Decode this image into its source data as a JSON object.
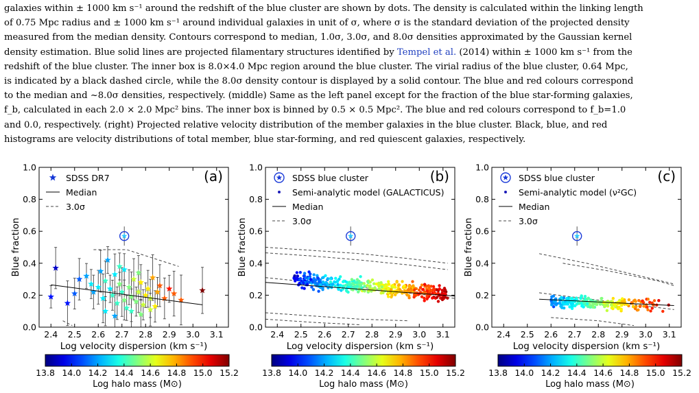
{
  "caption": {
    "lines": [
      "galaxies within ± 1000 km s⁻¹ around the redshift of the blue cluster are shown by dots. The density is calculated within the linking length",
      "of 0.75 Mpc radius and ± 1000 km s⁻¹ around individual galaxies in unit of σ, where σ is the standard deviation of the projected density",
      "measured from the median density. Contours correspond to median, 1.0σ, 3.0σ, and 8.0σ densities approximated by the Gaussian kernel",
      "density estimation. Blue solid lines are projected filamentary structures identified by Tempel et al. (2014) within ± 1000 km s⁻¹ from the",
      "redshift of the blue cluster. The inner box is 8.0×4.0 Mpc region around the blue cluster. The virial radius of the blue cluster, 0.64 Mpc,",
      "is indicated by a black dashed circle, while the 8.0σ density contour is displayed by a solid contour. The blue and red colours correspond",
      "to the median and ~8.0σ densities, respectively. (middle) Same as the left panel except for the fraction of the blue star-forming galaxies,",
      "f_b, calculated in each 2.0 × 2.0 Mpc² bins. The inner box is binned by 0.5 × 0.5 Mpc². The blue and red colours correspond to f_b=1.0",
      "and 0.0, respectively. (right) Projected relative velocity distribution of the member galaxies in the blue cluster. Black, blue, and red",
      "histograms are velocity distributions of total member, blue star-forming, and red quiescent galaxies, respectively."
    ],
    "link_text": "Tempel et al."
  },
  "chart_data": [
    {
      "type": "scatter",
      "panel_label": "(a)",
      "xlabel": "Log velocity dispersion (km s⁻¹)",
      "ylabel": "Blue fraction",
      "xlim": [
        2.35,
        3.15
      ],
      "ylim": [
        0.0,
        1.0
      ],
      "x_ticks": [
        "2.4",
        "2.5",
        "2.6",
        "2.7",
        "2.8",
        "2.9",
        "3.0",
        "3.1"
      ],
      "y_ticks": [
        "0.0",
        "0.2",
        "0.4",
        "0.6",
        "0.8",
        "1.0"
      ],
      "legend": [
        "SDSS DR7",
        "Median",
        "3.0σ"
      ],
      "legend_position": "top-left",
      "colorbar": {
        "label": "Log halo mass (M⊙)",
        "range": [
          13.8,
          15.2
        ],
        "ticks": [
          "13.8",
          "14.0",
          "14.2",
          "14.4",
          "14.6",
          "14.8",
          "15.0",
          "15.2"
        ]
      },
      "blue_cluster": {
        "x": 2.71,
        "y": 0.57,
        "err": 0.06
      },
      "median_line": [
        [
          2.4,
          0.265
        ],
        [
          3.04,
          0.14
        ]
      ],
      "sigma_lines": [
        [
          [
            2.58,
            0.485
          ],
          [
            2.72,
            0.485
          ],
          [
            2.94,
            0.38
          ]
        ],
        [
          [
            2.45,
            0.04
          ],
          [
            2.49,
            0.01
          ]
        ]
      ],
      "points": [
        [
          2.4,
          0.19,
          14.0
        ],
        [
          2.42,
          0.37,
          13.9
        ],
        [
          2.47,
          0.15,
          14.0
        ],
        [
          2.5,
          0.21,
          14.1
        ],
        [
          2.52,
          0.3,
          14.1
        ],
        [
          2.55,
          0.32,
          14.2
        ],
        [
          2.57,
          0.27,
          14.3
        ],
        [
          2.58,
          0.22,
          14.2
        ],
        [
          2.6,
          0.25,
          14.3
        ],
        [
          2.61,
          0.35,
          14.2
        ],
        [
          2.62,
          0.18,
          14.3
        ],
        [
          2.63,
          0.29,
          14.4
        ],
        [
          2.64,
          0.42,
          14.2
        ],
        [
          2.65,
          0.24,
          14.3
        ],
        [
          2.66,
          0.2,
          14.4
        ],
        [
          2.67,
          0.33,
          14.3
        ],
        [
          2.68,
          0.15,
          14.4
        ],
        [
          2.69,
          0.27,
          14.5
        ],
        [
          2.7,
          0.22,
          14.4
        ],
        [
          2.71,
          0.36,
          14.3
        ],
        [
          2.72,
          0.12,
          14.4
        ],
        [
          2.73,
          0.25,
          14.5
        ],
        [
          2.74,
          0.19,
          14.5
        ],
        [
          2.75,
          0.3,
          14.6
        ],
        [
          2.76,
          0.16,
          14.5
        ],
        [
          2.77,
          0.22,
          14.6
        ],
        [
          2.78,
          0.28,
          14.7
        ],
        [
          2.79,
          0.14,
          14.6
        ],
        [
          2.8,
          0.2,
          14.7
        ],
        [
          2.81,
          0.24,
          14.7
        ],
        [
          2.82,
          0.18,
          14.6
        ],
        [
          2.83,
          0.31,
          14.8
        ],
        [
          2.84,
          0.13,
          14.7
        ],
        [
          2.85,
          0.22,
          14.8
        ],
        [
          2.86,
          0.26,
          14.9
        ],
        [
          2.88,
          0.18,
          14.9
        ],
        [
          2.9,
          0.24,
          15.0
        ],
        [
          2.92,
          0.21,
          14.9
        ],
        [
          2.95,
          0.17,
          14.9
        ],
        [
          3.04,
          0.23,
          15.2
        ],
        [
          2.63,
          0.1,
          14.3
        ],
        [
          2.67,
          0.07,
          14.2
        ],
        [
          2.71,
          0.17,
          14.5
        ],
        [
          2.74,
          0.1,
          14.4
        ],
        [
          2.78,
          0.08,
          14.5
        ],
        [
          2.82,
          0.11,
          14.6
        ],
        [
          2.69,
          0.38,
          14.4
        ],
        [
          2.77,
          0.34,
          14.5
        ]
      ]
    },
    {
      "type": "scatter",
      "panel_label": "(b)",
      "xlabel": "Log velocity dispersion (km s⁻¹)",
      "ylabel": "Blue fraction",
      "xlim": [
        2.35,
        3.15
      ],
      "ylim": [
        0.0,
        1.0
      ],
      "x_ticks": [
        "2.4",
        "2.5",
        "2.6",
        "2.7",
        "2.8",
        "2.9",
        "3.0",
        "3.1"
      ],
      "y_ticks": [
        "0.0",
        "0.2",
        "0.4",
        "0.6",
        "0.8",
        "1.0"
      ],
      "legend": [
        "SDSS blue cluster",
        "Semi-analytic model (GALACTICUS)",
        "Median",
        "3.0σ"
      ],
      "legend_position": "top-left",
      "colorbar": {
        "label": "Log halo mass (M⊙)",
        "range": [
          13.8,
          15.2
        ],
        "ticks": [
          "13.8",
          "14.0",
          "14.2",
          "14.4",
          "14.6",
          "14.8",
          "15.0",
          "15.2"
        ]
      },
      "blue_cluster": {
        "x": 2.71,
        "y": 0.57,
        "err": 0.06
      },
      "median_line": [
        [
          2.35,
          0.28
        ],
        [
          3.15,
          0.195
        ]
      ],
      "sigma_lines": [
        [
          [
            2.35,
            0.5
          ],
          [
            2.55,
            0.48
          ],
          [
            2.75,
            0.46
          ],
          [
            2.95,
            0.43
          ],
          [
            3.12,
            0.4
          ]
        ],
        [
          [
            2.35,
            0.465
          ],
          [
            2.55,
            0.445
          ],
          [
            2.75,
            0.42
          ],
          [
            2.95,
            0.39
          ],
          [
            3.12,
            0.36
          ]
        ],
        [
          [
            2.35,
            0.31
          ],
          [
            2.75,
            0.25
          ],
          [
            3.15,
            0.18
          ]
        ],
        [
          [
            2.35,
            0.09
          ],
          [
            2.55,
            0.07
          ],
          [
            2.75,
            0.05
          ],
          [
            2.95,
            0.04
          ]
        ],
        [
          [
            2.35,
            0.05
          ],
          [
            2.55,
            0.03
          ],
          [
            2.75,
            0.015
          ]
        ]
      ]
    },
    {
      "type": "scatter",
      "panel_label": "(c)",
      "xlabel": "Log velocity dispersion (km s⁻¹)",
      "ylabel": "Blue fraction",
      "xlim": [
        2.35,
        3.15
      ],
      "ylim": [
        0.0,
        1.0
      ],
      "x_ticks": [
        "2.4",
        "2.5",
        "2.6",
        "2.7",
        "2.8",
        "2.9",
        "3.0",
        "3.1"
      ],
      "y_ticks": [
        "0.0",
        "0.2",
        "0.4",
        "0.6",
        "0.8",
        "1.0"
      ],
      "legend": [
        "SDSS blue cluster",
        "Semi-analytic model (ν²GC)",
        "Median",
        "3.0σ"
      ],
      "legend_position": "top-left",
      "colorbar": {
        "label": "Log halo mass (M⊙)",
        "range": [
          13.8,
          15.2
        ],
        "ticks": [
          "13.8",
          "14.0",
          "14.2",
          "14.4",
          "14.6",
          "14.8",
          "15.0",
          "15.2"
        ]
      },
      "blue_cluster": {
        "x": 2.71,
        "y": 0.57,
        "err": 0.06
      },
      "median_line": [
        [
          2.55,
          0.175
        ],
        [
          3.12,
          0.135
        ]
      ],
      "sigma_lines": [
        [
          [
            2.55,
            0.46
          ],
          [
            2.75,
            0.4
          ],
          [
            2.95,
            0.33
          ],
          [
            3.12,
            0.27
          ]
        ],
        [
          [
            2.65,
            0.4
          ],
          [
            2.85,
            0.35
          ],
          [
            3.05,
            0.29
          ],
          [
            3.12,
            0.26
          ]
        ],
        [
          [
            2.55,
            0.215
          ],
          [
            3.12,
            0.11
          ]
        ],
        [
          [
            2.6,
            0.06
          ],
          [
            2.8,
            0.04
          ],
          [
            2.95,
            0.01
          ]
        ]
      ]
    }
  ]
}
